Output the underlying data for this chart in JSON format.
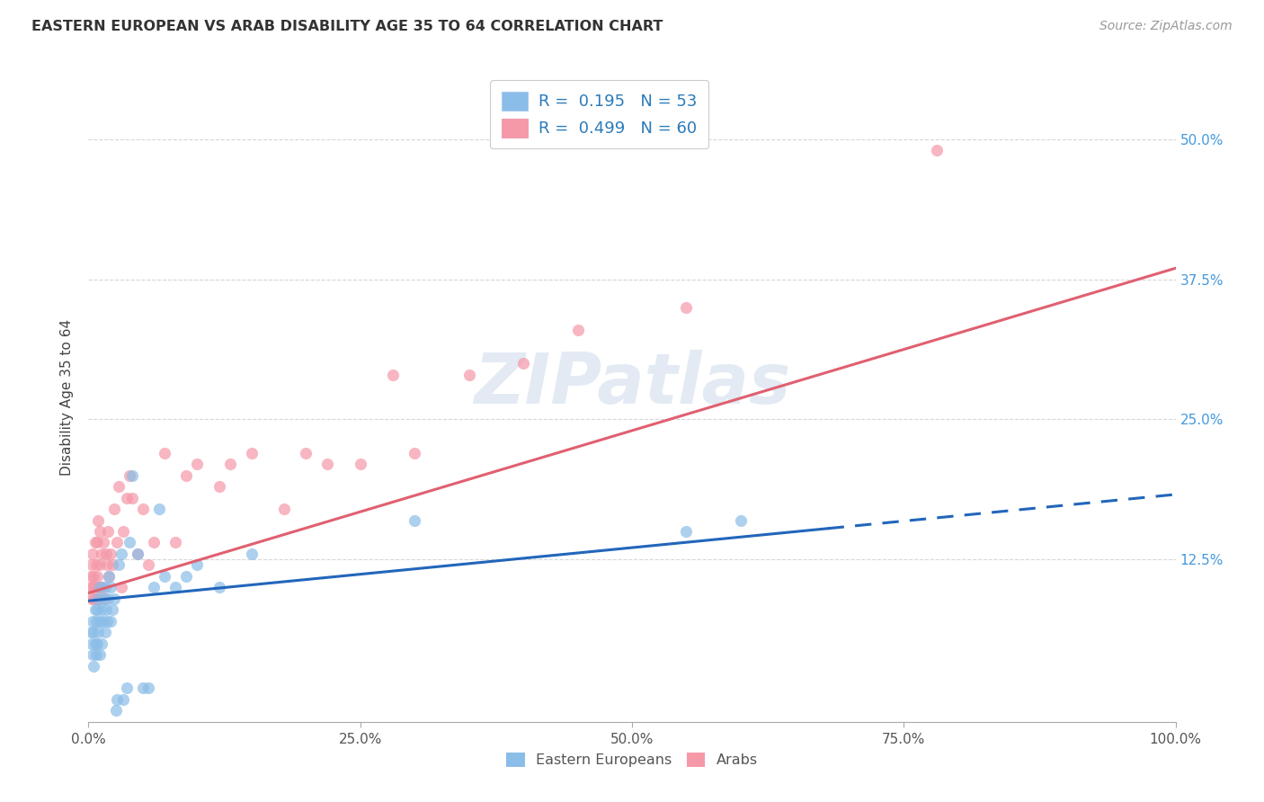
{
  "title": "EASTERN EUROPEAN VS ARAB DISABILITY AGE 35 TO 64 CORRELATION CHART",
  "source": "Source: ZipAtlas.com",
  "ylabel": "Disability Age 35 to 64",
  "ytick_labels": [
    "12.5%",
    "25.0%",
    "37.5%",
    "50.0%"
  ],
  "ytick_values": [
    0.125,
    0.25,
    0.375,
    0.5
  ],
  "xtick_positions": [
    0.0,
    0.25,
    0.5,
    0.75,
    1.0
  ],
  "xtick_labels": [
    "0.0%",
    "25.0%",
    "50.0%",
    "75.0%",
    "100.0%"
  ],
  "xlim": [
    0.0,
    1.0
  ],
  "ylim": [
    -0.02,
    0.56
  ],
  "legend_r_color": "#2b7bba",
  "watermark_text": "ZIPatlas",
  "eastern_european_color": "#8abde8",
  "arab_color": "#f598a8",
  "trend_ee_color": "#2266bb",
  "trend_arab_color": "#e06070",
  "trend_ee_dash_start": 0.68,
  "eastern_european_x": [
    0.002,
    0.003,
    0.004,
    0.004,
    0.005,
    0.005,
    0.006,
    0.006,
    0.007,
    0.007,
    0.008,
    0.008,
    0.009,
    0.009,
    0.01,
    0.01,
    0.01,
    0.012,
    0.012,
    0.013,
    0.014,
    0.015,
    0.015,
    0.016,
    0.017,
    0.018,
    0.019,
    0.02,
    0.02,
    0.022,
    0.024,
    0.025,
    0.026,
    0.028,
    0.03,
    0.032,
    0.035,
    0.038,
    0.04,
    0.045,
    0.05,
    0.055,
    0.06,
    0.065,
    0.07,
    0.08,
    0.09,
    0.1,
    0.12,
    0.15,
    0.3,
    0.55,
    0.6
  ],
  "eastern_european_y": [
    0.06,
    0.05,
    0.04,
    0.07,
    0.03,
    0.06,
    0.05,
    0.08,
    0.04,
    0.07,
    0.05,
    0.08,
    0.06,
    0.09,
    0.04,
    0.07,
    0.1,
    0.05,
    0.08,
    0.07,
    0.09,
    0.06,
    0.1,
    0.08,
    0.07,
    0.09,
    0.11,
    0.07,
    0.1,
    0.08,
    0.09,
    -0.01,
    0.0,
    0.12,
    0.13,
    0.0,
    0.01,
    0.14,
    0.2,
    0.13,
    0.01,
    0.01,
    0.1,
    0.17,
    0.11,
    0.1,
    0.11,
    0.12,
    0.1,
    0.13,
    0.16,
    0.15,
    0.16
  ],
  "arab_x": [
    0.002,
    0.002,
    0.003,
    0.003,
    0.004,
    0.004,
    0.005,
    0.005,
    0.006,
    0.006,
    0.007,
    0.007,
    0.008,
    0.008,
    0.009,
    0.009,
    0.01,
    0.01,
    0.01,
    0.011,
    0.012,
    0.013,
    0.014,
    0.015,
    0.016,
    0.017,
    0.018,
    0.019,
    0.02,
    0.022,
    0.024,
    0.026,
    0.028,
    0.03,
    0.032,
    0.035,
    0.038,
    0.04,
    0.045,
    0.05,
    0.055,
    0.06,
    0.07,
    0.08,
    0.09,
    0.1,
    0.12,
    0.13,
    0.15,
    0.18,
    0.2,
    0.22,
    0.25,
    0.28,
    0.3,
    0.35,
    0.4,
    0.45,
    0.55,
    0.78
  ],
  "arab_y": [
    0.1,
    0.11,
    0.09,
    0.12,
    0.1,
    0.13,
    0.09,
    0.11,
    0.1,
    0.14,
    0.09,
    0.12,
    0.11,
    0.14,
    0.1,
    0.16,
    0.09,
    0.12,
    0.15,
    0.1,
    0.13,
    0.1,
    0.14,
    0.09,
    0.13,
    0.12,
    0.15,
    0.11,
    0.13,
    0.12,
    0.17,
    0.14,
    0.19,
    0.1,
    0.15,
    0.18,
    0.2,
    0.18,
    0.13,
    0.17,
    0.12,
    0.14,
    0.22,
    0.14,
    0.2,
    0.21,
    0.19,
    0.21,
    0.22,
    0.17,
    0.22,
    0.21,
    0.21,
    0.29,
    0.22,
    0.29,
    0.3,
    0.33,
    0.35,
    0.49
  ],
  "ee_intercept": 0.088,
  "ee_slope": 0.095,
  "arab_intercept": 0.095,
  "arab_slope": 0.29
}
